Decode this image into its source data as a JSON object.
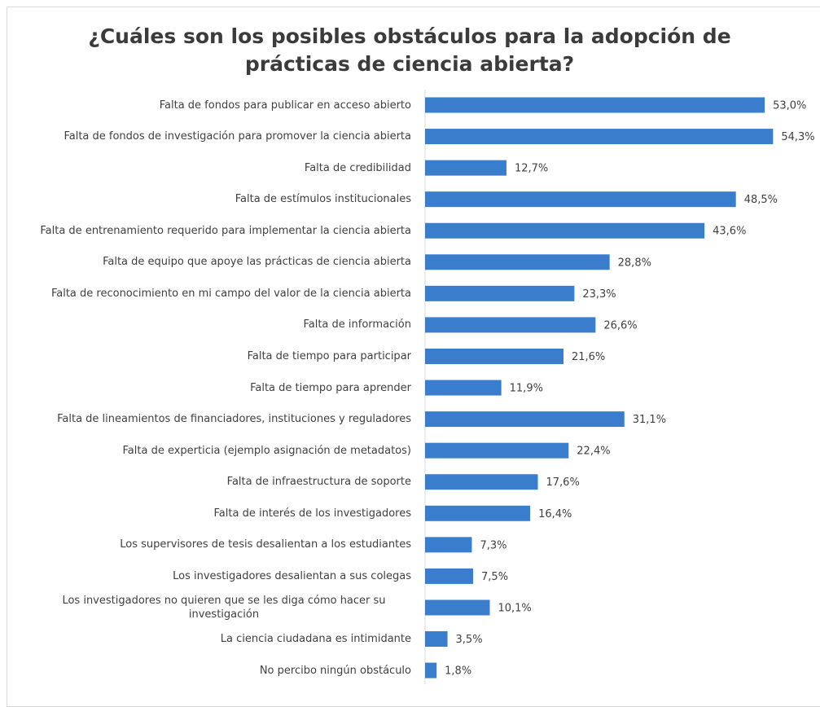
{
  "chart_data": {
    "type": "bar",
    "orientation": "horizontal",
    "title": "¿Cuáles son los posibles obstáculos para la adopción de prácticas de ciencia abierta?",
    "categories": [
      "Falta de fondos para publicar en acceso abierto",
      "Falta de fondos de investigación para promover la ciencia abierta",
      "Falta de credibilidad",
      "Falta de estímulos institucionales",
      "Falta de entrenamiento requerido para implementar la ciencia abierta",
      "Falta de equipo que apoye las prácticas de ciencia abierta",
      "Falta de reconocimiento en mi campo del valor de la ciencia abierta",
      "Falta de información",
      "Falta de tiempo para participar",
      "Falta de tiempo para aprender",
      "Falta de lineamientos de financiadores, instituciones y reguladores",
      "Falta de experticia (ejemplo asignación de metadatos)",
      "Falta de infraestructura de soporte",
      "Falta de interés de los investigadores",
      "Los supervisores de tesis desalientan a los estudiantes",
      "Los investigadores desalientan a sus colegas",
      "Los investigadores no quieren que se les diga cómo hacer su investigación",
      "La ciencia ciudadana es intimidante",
      "No percibo ningún obstáculo"
    ],
    "values": [
      53.0,
      54.3,
      12.7,
      48.5,
      43.6,
      28.8,
      23.3,
      26.6,
      21.6,
      11.9,
      31.1,
      22.4,
      17.6,
      16.4,
      7.3,
      7.5,
      10.1,
      3.5,
      1.8
    ],
    "value_labels": [
      "53,0%",
      "54,3%",
      "12,7%",
      "48,5%",
      "43,6%",
      "28,8%",
      "23,3%",
      "26,6%",
      "21,6%",
      "11,9%",
      "31,1%",
      "22,4%",
      "17,6%",
      "16,4%",
      "7,3%",
      "7,5%",
      "10,1%",
      "3,5%",
      "1,8%"
    ],
    "color": "#3a7dcc"
  }
}
